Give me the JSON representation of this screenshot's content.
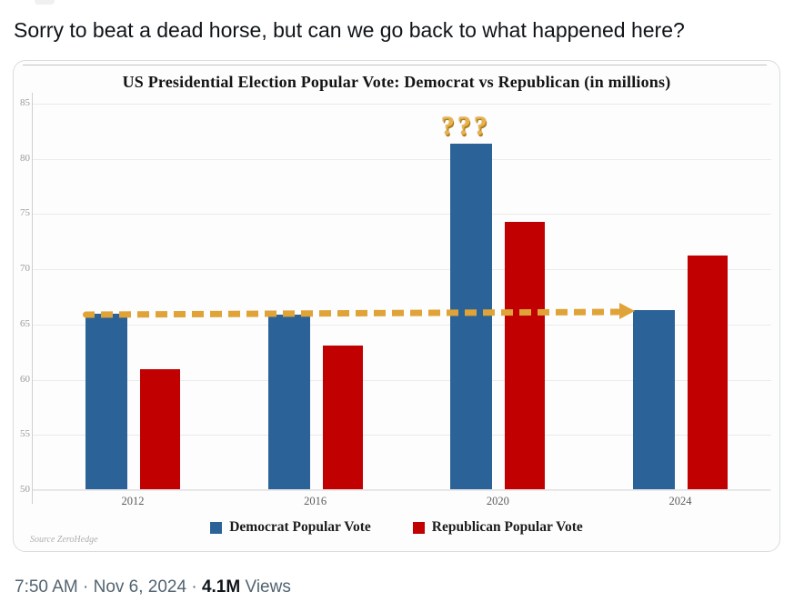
{
  "tweet": {
    "text": "Sorry to beat a dead horse, but can we go back to what happened here?",
    "meta_left": "7:50 AM · Nov 6, 2024 ·",
    "views_count": "4.1M",
    "views_label": "Views"
  },
  "chart_data": {
    "type": "bar",
    "title": "US Presidential Election Popular Vote: Democrat vs Republican (in millions)",
    "categories": [
      "2012",
      "2016",
      "2020",
      "2024"
    ],
    "series": [
      {
        "name": "Democrat Popular Vote",
        "color": "#2B6399",
        "values": [
          65.9,
          65.8,
          81.3,
          66.2
        ]
      },
      {
        "name": "Republican Popular Vote",
        "color": "#C00001",
        "values": [
          60.9,
          63.0,
          74.2,
          71.2
        ]
      }
    ],
    "ylim": [
      50,
      85
    ],
    "yticks": [
      50,
      55,
      60,
      65,
      70,
      75,
      80,
      85
    ],
    "grid": true,
    "legend_position": "bottom",
    "annotations": {
      "question_marks": "???",
      "arrow": {
        "type": "dashed-arrow",
        "color": "#DFA338",
        "from_category": "2012",
        "to_category": "2024",
        "level": 66.0
      },
      "source": "Source ZeroHedge"
    }
  }
}
